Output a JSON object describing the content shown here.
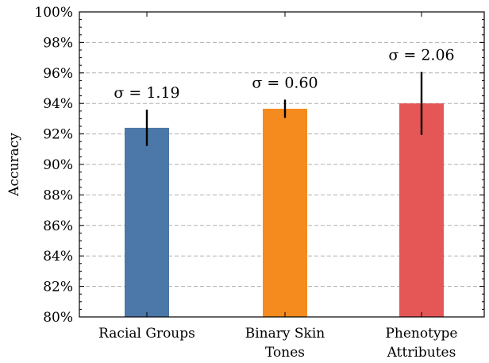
{
  "chart_data": {
    "type": "bar",
    "categories": [
      [
        "Racial Groups"
      ],
      [
        "Binary Skin",
        "Tones"
      ],
      [
        "Phenotype",
        "Attributes"
      ]
    ],
    "values": [
      92.4,
      93.65,
      94.0
    ],
    "error": [
      1.19,
      0.6,
      2.06
    ],
    "annotations": [
      "σ = 1.19",
      "σ = 0.60",
      "σ = 2.06"
    ],
    "colors": [
      "#4b77a9",
      "#f58a1f",
      "#e45756"
    ],
    "ylabel": "Accuracy",
    "ylim": [
      80,
      100
    ],
    "yticks": [
      80,
      82,
      84,
      86,
      88,
      90,
      92,
      94,
      96,
      98,
      100
    ],
    "ytick_labels": [
      "80%",
      "82%",
      "84%",
      "86%",
      "88%",
      "90%",
      "92%",
      "94%",
      "96%",
      "98%",
      "100%"
    ],
    "grid": true
  }
}
